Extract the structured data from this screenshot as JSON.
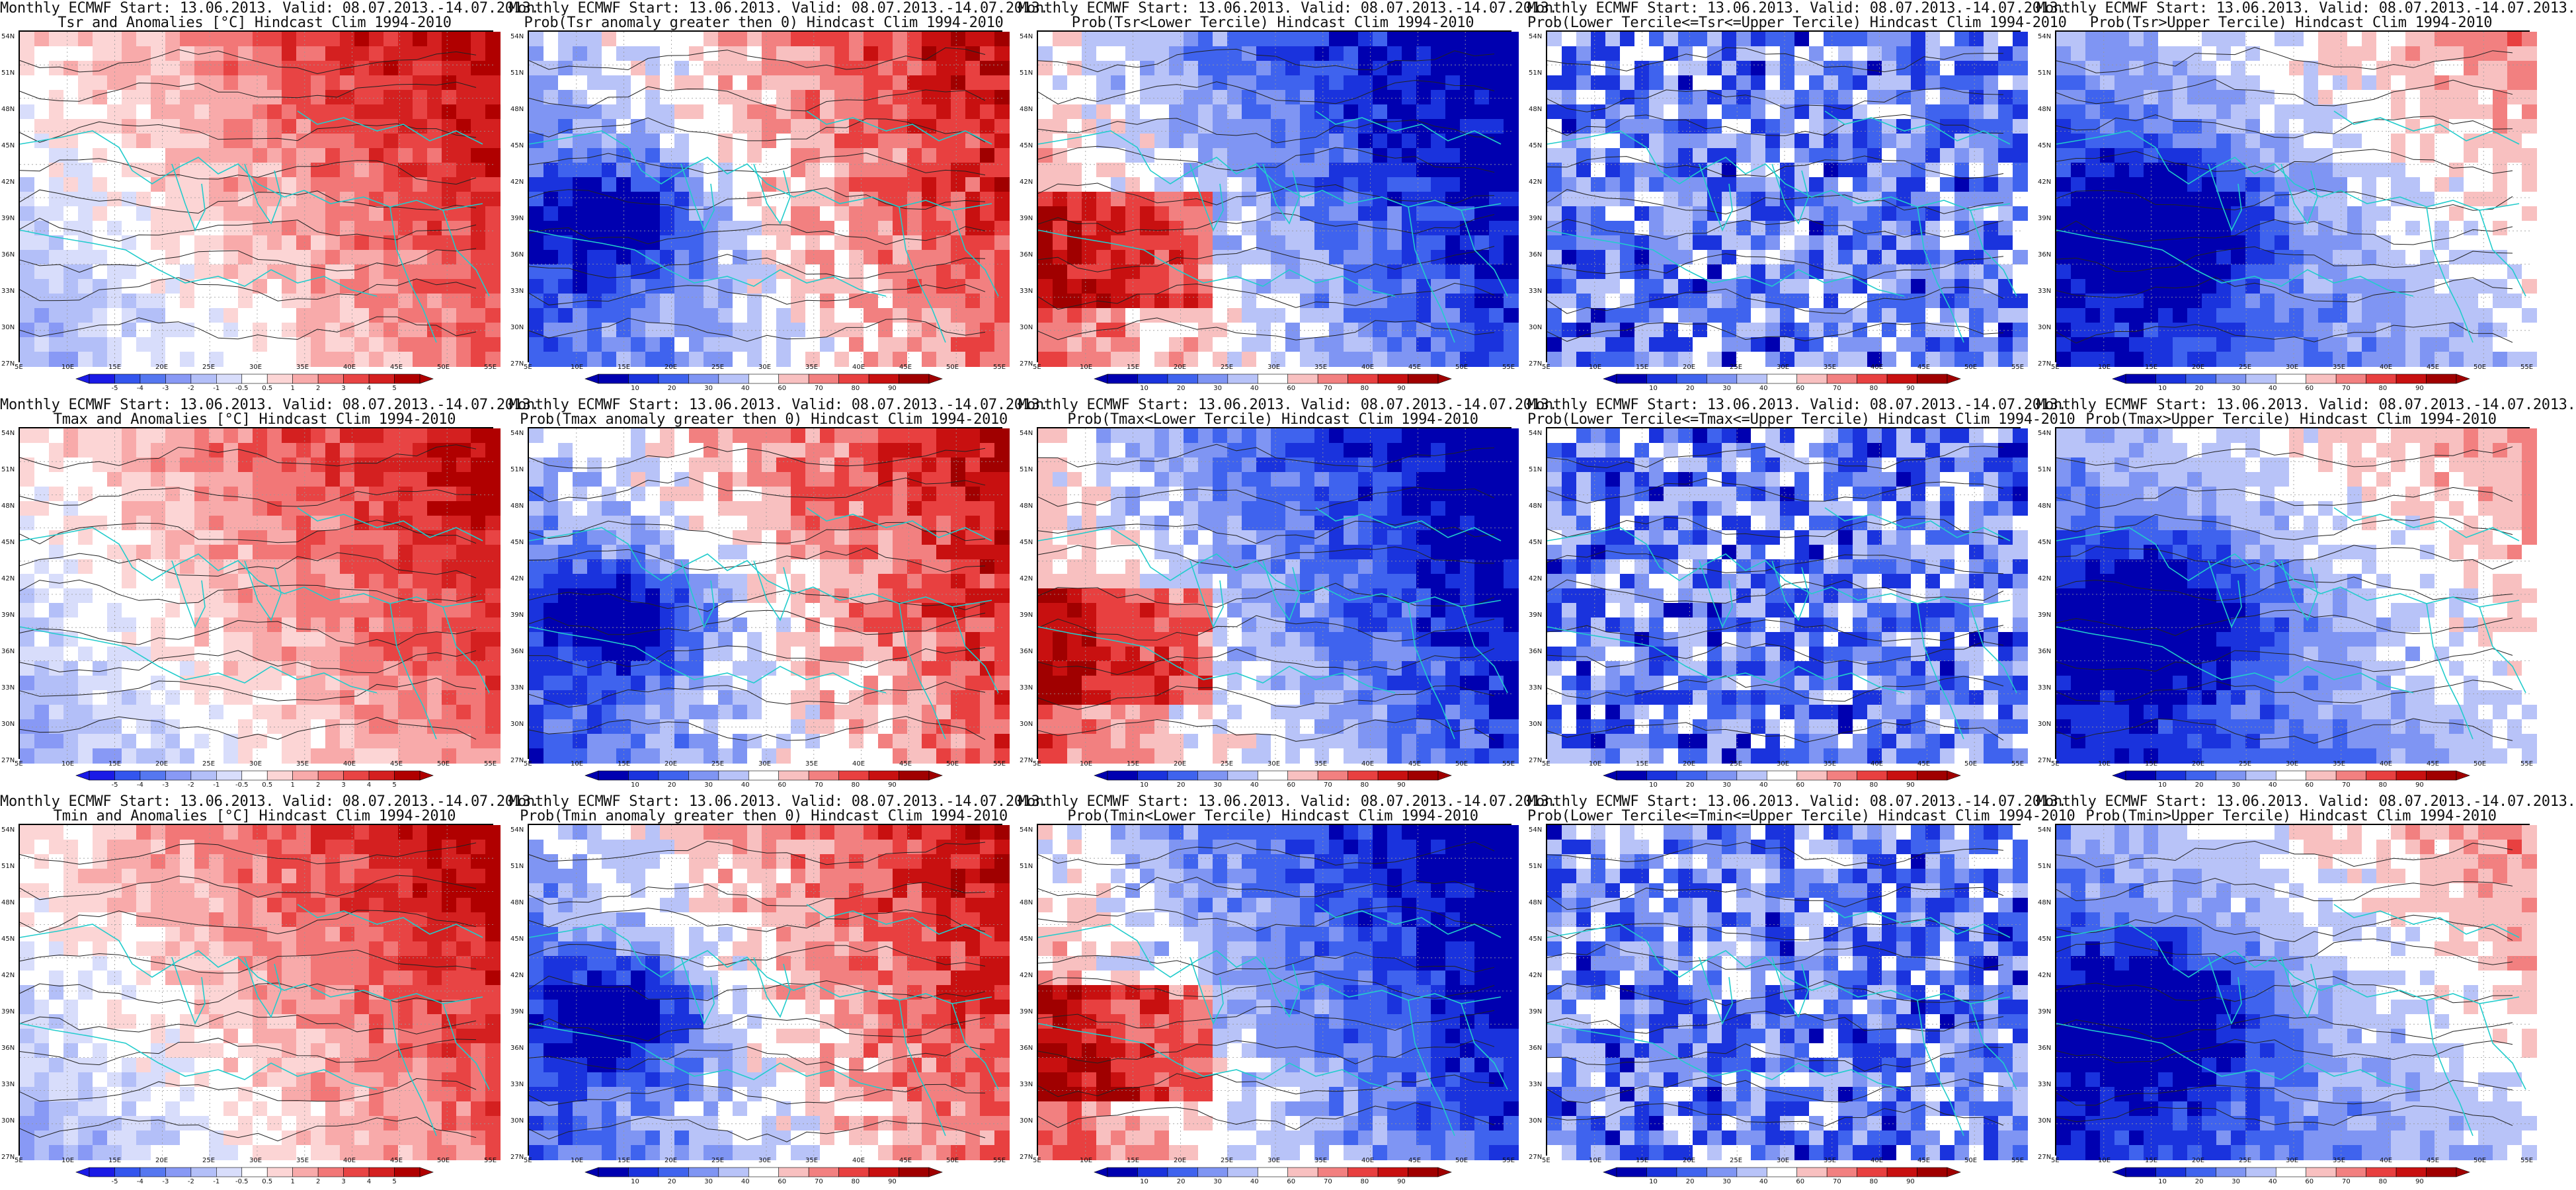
{
  "panels": [
    {
      "line1": "Monthly ECMWF Start: 13.06.2013. Valid: 08.07.2013.-14.07.2013.",
      "line2": "Tsr and Anomalies [°C] Hindcast Clim 1994-2010",
      "type": "anomaly",
      "colorbar_labels": [
        "-5",
        "-4",
        "-3",
        "-2",
        "-1",
        "-0.5",
        "0.5",
        "1",
        "2",
        "3",
        "4",
        "5"
      ]
    },
    {
      "line1": "Monthly ECMWF Start: 13.06.2013. Valid: 08.07.2013.-14.07.2013.",
      "line2": "Prob(Tsr anomaly greater then 0) Hindcast Clim 1994-2010",
      "type": "prob",
      "colorbar_labels": [
        "10",
        "20",
        "30",
        "40",
        "60",
        "70",
        "80",
        "90"
      ]
    },
    {
      "line1": "Monthly ECMWF Start: 13.06.2013. Valid: 08.07.2013.-14.07.2013.",
      "line2": "Prob(Tsr<Lower Tercile) Hindcast Clim 1994-2010",
      "type": "prob",
      "colorbar_labels": [
        "10",
        "20",
        "30",
        "40",
        "60",
        "70",
        "80",
        "90"
      ]
    },
    {
      "line1": "Monthly ECMWF Start: 13.06.2013. Valid: 08.07.2013.-14.07.2013.",
      "line2": "Prob(Lower Tercile<=Tsr<=Upper Tercile) Hindcast Clim 1994-2010",
      "type": "prob",
      "colorbar_labels": [
        "10",
        "20",
        "30",
        "40",
        "60",
        "70",
        "80",
        "90"
      ]
    },
    {
      "line1": "Monthly ECMWF Start: 13.06.2013. Valid: 08.07.2013.-14.07.2013.",
      "line2": "Prob(Tsr>Upper Tercile) Hindcast Clim 1994-2010",
      "type": "prob",
      "colorbar_labels": [
        "10",
        "20",
        "30",
        "40",
        "60",
        "70",
        "80",
        "90"
      ]
    },
    {
      "line1": "Monthly ECMWF Start: 13.06.2013. Valid: 08.07.2013.-14.07.2013.",
      "line2": "Tmax and Anomalies [°C] Hindcast Clim 1994-2010",
      "type": "anomaly",
      "colorbar_labels": [
        "-5",
        "-4",
        "-3",
        "-2",
        "-1",
        "-0.5",
        "0.5",
        "1",
        "2",
        "3",
        "4",
        "5"
      ]
    },
    {
      "line1": "Monthly ECMWF Start: 13.06.2013. Valid: 08.07.2013.-14.07.2013.",
      "line2": "Prob(Tmax anomaly greater then 0) Hindcast Clim 1994-2010",
      "type": "prob",
      "colorbar_labels": [
        "10",
        "20",
        "30",
        "40",
        "60",
        "70",
        "80",
        "90"
      ]
    },
    {
      "line1": "Monthly ECMWF Start: 13.06.2013. Valid: 08.07.2013.-14.07.2013.",
      "line2": "Prob(Tmax<Lower Tercile) Hindcast Clim 1994-2010",
      "type": "prob",
      "colorbar_labels": [
        "10",
        "20",
        "30",
        "40",
        "60",
        "70",
        "80",
        "90"
      ]
    },
    {
      "line1": "Monthly ECMWF Start: 13.06.2013. Valid: 08.07.2013.-14.07.2013.",
      "line2": "Prob(Lower Tercile<=Tmax<=Upper Tercile) Hindcast Clim 1994-2010",
      "type": "prob",
      "colorbar_labels": [
        "10",
        "20",
        "30",
        "40",
        "60",
        "70",
        "80",
        "90"
      ]
    },
    {
      "line1": "Monthly ECMWF Start: 13.06.2013. Valid: 08.07.2013.-14.07.2013.",
      "line2": "Prob(Tmax>Upper Tercile) Hindcast Clim 1994-2010",
      "type": "prob",
      "colorbar_labels": [
        "10",
        "20",
        "30",
        "40",
        "60",
        "70",
        "80",
        "90"
      ]
    },
    {
      "line1": "Monthly ECMWF Start: 13.06.2013. Valid: 08.07.2013.-14.07.2013.",
      "line2": "Tmin and Anomalies [°C] Hindcast Clim 1994-2010",
      "type": "anomaly",
      "colorbar_labels": [
        "-5",
        "-4",
        "-3",
        "-2",
        "-1",
        "-0.5",
        "0.5",
        "1",
        "2",
        "3",
        "4",
        "5"
      ]
    },
    {
      "line1": "Monthly ECMWF Start: 13.06.2013. Valid: 08.07.2013.-14.07.2013.",
      "line2": "Prob(Tmin anomaly greater then 0) Hindcast Clim 1994-2010",
      "type": "prob",
      "colorbar_labels": [
        "10",
        "20",
        "30",
        "40",
        "60",
        "70",
        "80",
        "90"
      ]
    },
    {
      "line1": "Monthly ECMWF Start: 13.06.2013. Valid: 08.07.2013.-14.07.2013.",
      "line2": "Prob(Tmin<Lower Tercile) Hindcast Clim 1994-2010",
      "type": "prob",
      "colorbar_labels": [
        "10",
        "20",
        "30",
        "40",
        "60",
        "70",
        "80",
        "90"
      ]
    },
    {
      "line1": "Monthly ECMWF Start: 13.06.2013. Valid: 08.07.2013.-14.07.2013.",
      "line2": "Prob(Lower Tercile<=Tmin<=Upper Tercile) Hindcast Clim 1994-2010",
      "type": "prob",
      "colorbar_labels": [
        "10",
        "20",
        "30",
        "40",
        "60",
        "70",
        "80",
        "90"
      ]
    },
    {
      "line1": "Monthly ECMWF Start: 13.06.2013. Valid: 08.07.2013.-14.07.2013.",
      "line2": "Prob(Tmin>Upper Tercile) Hindcast Clim 1994-2010",
      "type": "prob",
      "colorbar_labels": [
        "10",
        "20",
        "30",
        "40",
        "60",
        "70",
        "80",
        "90"
      ]
    }
  ],
  "lat_labels": [
    "54N",
    "51N",
    "48N",
    "45N",
    "42N",
    "39N",
    "36N",
    "33N",
    "30N",
    "27N"
  ],
  "lon_labels": [
    "5E",
    "10E",
    "15E",
    "20E",
    "25E",
    "30E",
    "35E",
    "40E",
    "45E",
    "50E",
    "55E"
  ],
  "colors": {
    "anomaly_scale": [
      "#1a1ae6",
      "#3355ee",
      "#5577f0",
      "#8899f5",
      "#b3bff8",
      "#d8ddfb",
      "#ffffff",
      "#fcd5d5",
      "#f8aaaa",
      "#f27777",
      "#e84444",
      "#d42020",
      "#b00000"
    ],
    "prob_scale": [
      "#0000b0",
      "#1a33dd",
      "#3f63ee",
      "#7f95f3",
      "#b8c3f8",
      "#ffffff",
      "#f8c0c0",
      "#f28080",
      "#e84040",
      "#c81010",
      "#a00000"
    ],
    "coastline": "#22cccc",
    "contour": "#222222",
    "grid": "#999999"
  }
}
